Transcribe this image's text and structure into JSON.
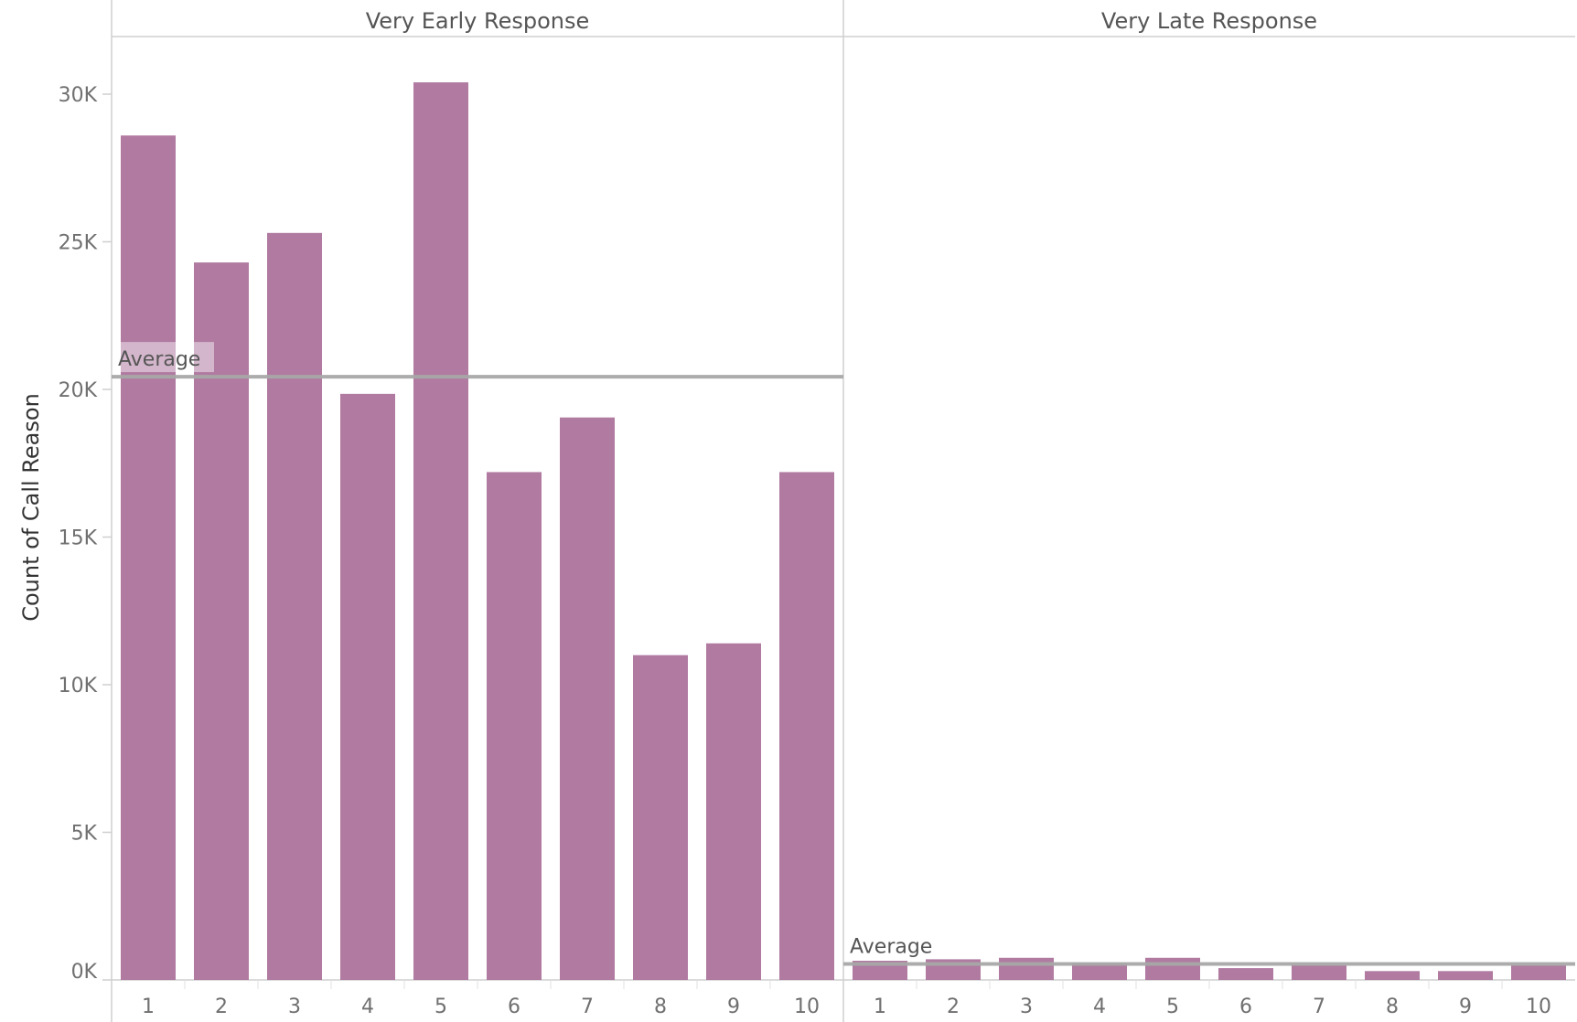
{
  "chart_data": {
    "type": "bar",
    "ylabel": "Count of Call Reason",
    "ylim": [
      0,
      32000
    ],
    "yticks": [
      0,
      5000,
      10000,
      15000,
      20000,
      25000,
      30000
    ],
    "ytick_labels": [
      "0K",
      "5K",
      "10K",
      "15K",
      "20K",
      "25K",
      "30K"
    ],
    "categories": [
      "1",
      "2",
      "3",
      "4",
      "5",
      "6",
      "7",
      "8",
      "9",
      "10"
    ],
    "bar_color": "#b07aa1",
    "reference_line_color": "#a8a8a8",
    "grid": false,
    "panels": [
      {
        "name": "Very Early Response",
        "values": [
          28600,
          24300,
          25300,
          19850,
          30400,
          17200,
          19050,
          11000,
          11400,
          17200
        ],
        "reference_line": {
          "label": "Average",
          "value": 20430
        }
      },
      {
        "name": "Very Late Response",
        "values": [
          650,
          700,
          750,
          550,
          750,
          400,
          500,
          300,
          300,
          500
        ],
        "reference_line": {
          "label": "Average",
          "value": 540
        }
      }
    ]
  }
}
